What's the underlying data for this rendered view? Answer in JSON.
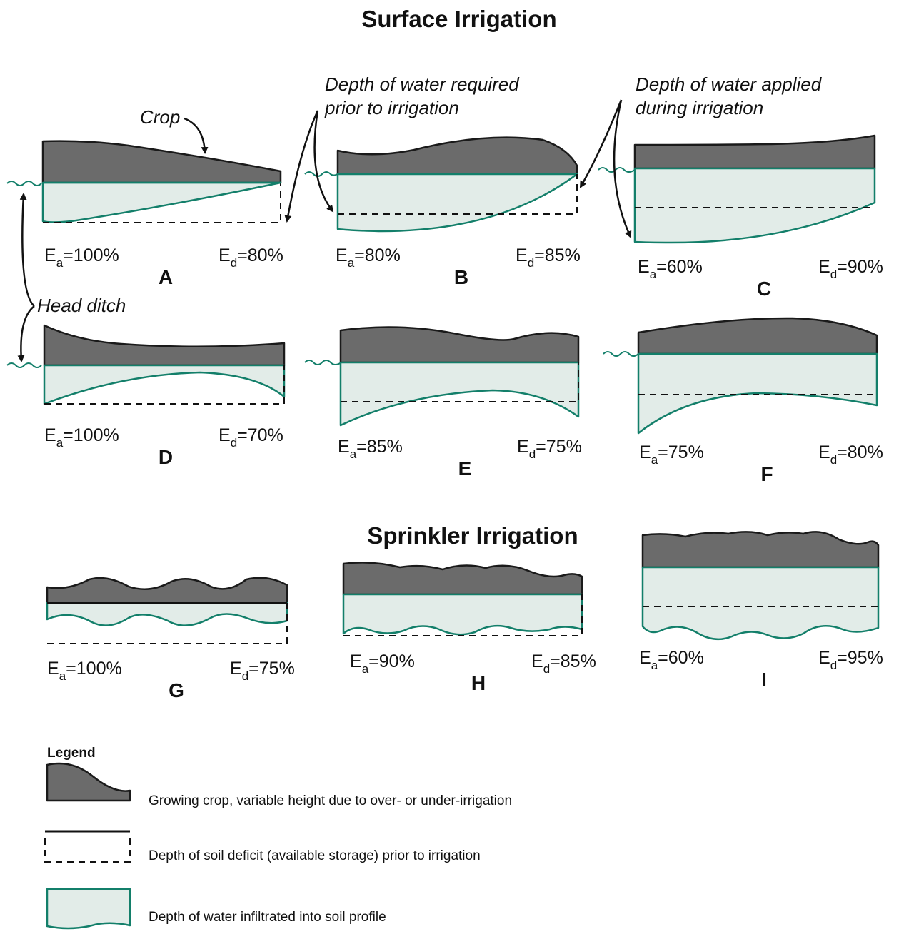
{
  "titles": {
    "surface": "Surface Irrigation",
    "sprinkler": "Sprinkler Irrigation"
  },
  "annotations": {
    "crop": "Crop",
    "head_ditch": "Head ditch",
    "required_line1": "Depth of water required",
    "required_line2": "prior to irrigation",
    "applied_line1": "Depth of water applied",
    "applied_line2": "during irrigation"
  },
  "panels": [
    {
      "label": "A",
      "ea": "100%",
      "ed": "80%"
    },
    {
      "label": "B",
      "ea": "80%",
      "ed": "85%"
    },
    {
      "label": "C",
      "ea": "60%",
      "ed": "90%"
    },
    {
      "label": "D",
      "ea": "100%",
      "ed": "70%"
    },
    {
      "label": "E",
      "ea": "85%",
      "ed": "75%"
    },
    {
      "label": "F",
      "ea": "75%",
      "ed": "80%"
    },
    {
      "label": "G",
      "ea": "100%",
      "ed": "75%"
    },
    {
      "label": "H",
      "ea": "90%",
      "ed": "85%"
    },
    {
      "label": "I",
      "ea": "60%",
      "ed": "95%"
    }
  ],
  "symbols": {
    "e": "E",
    "a_sub": "a",
    "d_sub": "d",
    "eq": "="
  },
  "legend": {
    "title": "Legend",
    "crop": "Growing crop, variable height due to over- or under-irrigation",
    "deficit": "Depth of soil deficit (available storage) prior to irrigation",
    "infiltrated": "Depth of water infiltrated into soil profile"
  }
}
